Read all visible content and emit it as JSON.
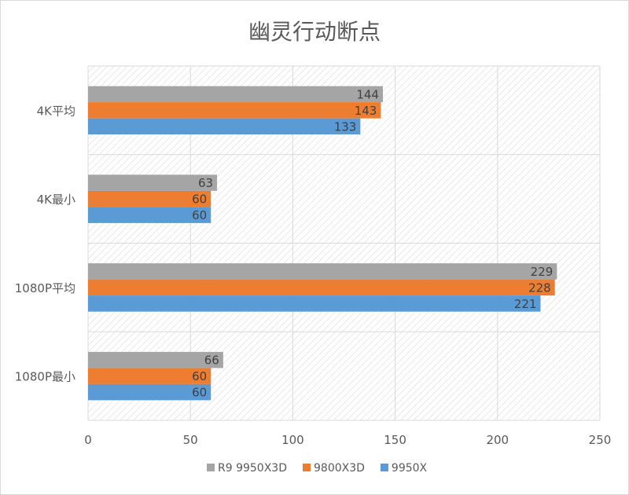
{
  "chart_data": {
    "type": "bar",
    "orientation": "horizontal",
    "title": "幽灵行动断点",
    "categories": [
      "4K平均",
      "4K最小",
      "1080P平均",
      "1080P最小"
    ],
    "series": [
      {
        "name": "R9 9950X3D",
        "color": "#a5a5a5",
        "values": [
          144,
          63,
          229,
          66
        ]
      },
      {
        "name": "9800X3D",
        "color": "#ed7d31",
        "values": [
          143,
          60,
          228,
          60
        ]
      },
      {
        "name": "9950X",
        "color": "#5b9bd5",
        "values": [
          133,
          60,
          221,
          60
        ]
      }
    ],
    "xlim": [
      0,
      250
    ],
    "xticks": [
      0,
      50,
      100,
      150,
      200,
      250
    ],
    "grid": true,
    "background": "diagonal hatch",
    "legend": "bottom",
    "data_labels": true
  }
}
